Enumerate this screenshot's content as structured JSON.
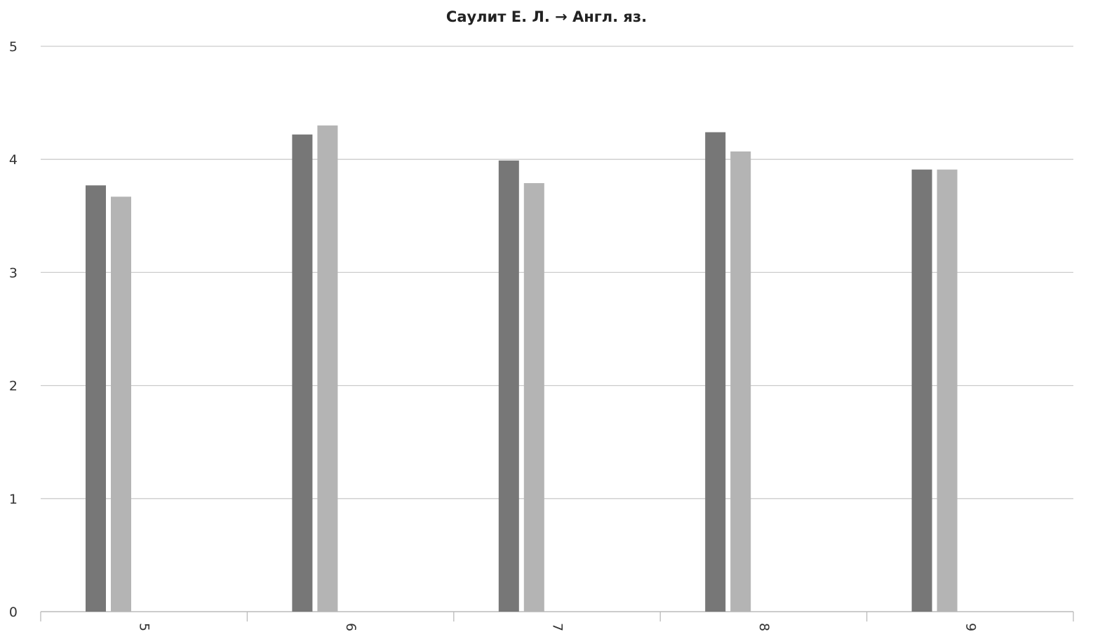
{
  "chart_data": {
    "type": "bar",
    "title": "Саулит Е. Л. → Англ. яз.",
    "xlabel": "",
    "ylabel": "",
    "categories": [
      "5",
      "6",
      "7",
      "8",
      "9"
    ],
    "series": [
      {
        "values": [
          3.77,
          4.22,
          3.99,
          4.24,
          3.91
        ]
      },
      {
        "values": [
          3.67,
          4.3,
          3.79,
          4.07,
          3.91
        ]
      }
    ],
    "ylim": [
      0,
      5
    ],
    "yticks": [
      "0",
      "1",
      "2",
      "3",
      "4",
      "5"
    ],
    "grid": true,
    "legend": "none",
    "colors": {
      "series": [
        "#777777",
        "#b4b4b4"
      ],
      "grid": "#cccccc",
      "axis": "#bbbbbb",
      "text": "#333333"
    }
  }
}
